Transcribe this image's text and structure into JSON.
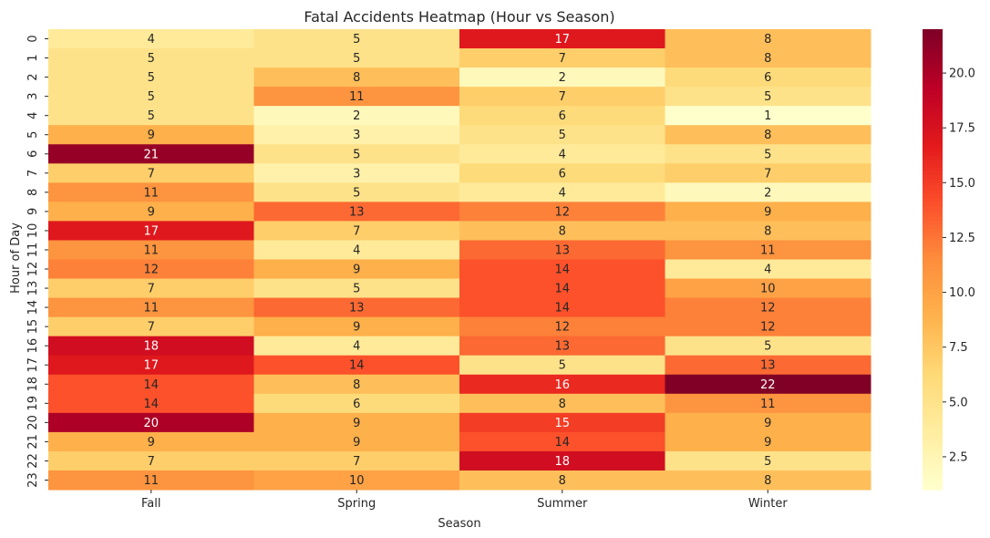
{
  "chart_data": {
    "type": "heatmap",
    "title": "Fatal Accidents Heatmap (Hour vs Season)",
    "xlabel": "Season",
    "ylabel": "Hour of Day",
    "columns": [
      "Fall",
      "Spring",
      "Summer",
      "Winter"
    ],
    "rows": [
      "0",
      "1",
      "2",
      "3",
      "4",
      "5",
      "6",
      "7",
      "8",
      "9",
      "10",
      "11",
      "12",
      "13",
      "14",
      "15",
      "16",
      "17",
      "18",
      "19",
      "20",
      "21",
      "22",
      "23"
    ],
    "values": [
      [
        4,
        5,
        17,
        8
      ],
      [
        5,
        5,
        7,
        8
      ],
      [
        5,
        8,
        2,
        6
      ],
      [
        5,
        11,
        7,
        5
      ],
      [
        5,
        2,
        6,
        1
      ],
      [
        9,
        3,
        5,
        8
      ],
      [
        21,
        5,
        4,
        5
      ],
      [
        7,
        3,
        6,
        7
      ],
      [
        11,
        5,
        4,
        2
      ],
      [
        9,
        13,
        12,
        9
      ],
      [
        17,
        7,
        8,
        8
      ],
      [
        11,
        4,
        13,
        11
      ],
      [
        12,
        9,
        14,
        4
      ],
      [
        7,
        5,
        14,
        10
      ],
      [
        11,
        13,
        14,
        12
      ],
      [
        7,
        9,
        12,
        12
      ],
      [
        18,
        4,
        13,
        5
      ],
      [
        17,
        14,
        5,
        13
      ],
      [
        14,
        8,
        16,
        22
      ],
      [
        14,
        6,
        8,
        11
      ],
      [
        20,
        9,
        15,
        9
      ],
      [
        9,
        9,
        14,
        9
      ],
      [
        7,
        7,
        18,
        5
      ],
      [
        11,
        10,
        8,
        8
      ]
    ],
    "color_range": [
      1,
      22
    ],
    "colormap": "YlOrRd",
    "colorbar_ticks": [
      "2.5",
      "5.0",
      "7.5",
      "10.0",
      "12.5",
      "15.0",
      "17.5",
      "20.0"
    ],
    "annotated": true
  }
}
